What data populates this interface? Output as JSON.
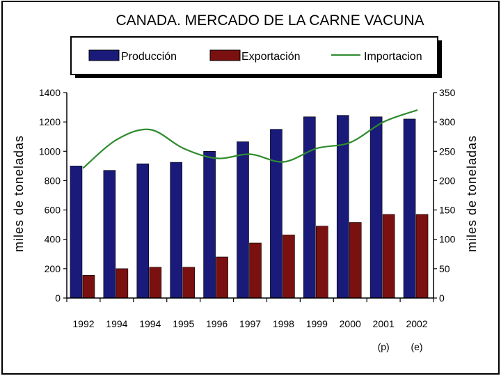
{
  "chart_data": {
    "type": "bar",
    "title": "CANADA. MERCADO DE LA CARNE VACUNA",
    "categories": [
      "1992",
      "1994",
      "1994",
      "1995",
      "1996",
      "1997",
      "1998",
      "1999",
      "2000",
      "2001",
      "2002"
    ],
    "category_notes": [
      "",
      "",
      "",
      "",
      "",
      "",
      "",
      "",
      "",
      "(p)",
      "(e)"
    ],
    "ylabel": "miles de toneladas",
    "y2label": "miles de toneladas",
    "ylim": [
      0,
      1400
    ],
    "y2lim": [
      0,
      350
    ],
    "yticks": [
      "0",
      "200",
      "400",
      "600",
      "800",
      "1000",
      "1200",
      "1400"
    ],
    "y2ticks": [
      "0",
      "50",
      "100",
      "150",
      "200",
      "250",
      "300",
      "350"
    ],
    "legend_position": "top",
    "series": [
      {
        "name": "Producción",
        "type": "bar",
        "axis": "left",
        "color": "#1a1a7a",
        "values": [
          900,
          870,
          915,
          925,
          1000,
          1065,
          1150,
          1235,
          1245,
          1235,
          1220
        ]
      },
      {
        "name": "Exportación",
        "type": "bar",
        "axis": "left",
        "color": "#7a1010",
        "values": [
          155,
          200,
          210,
          210,
          280,
          375,
          430,
          490,
          515,
          570,
          570
        ]
      },
      {
        "name": "Importacion",
        "type": "line",
        "axis": "right",
        "color": "#2e8b2e",
        "values": [
          222,
          270,
          287,
          255,
          238,
          245,
          232,
          255,
          265,
          300,
          320
        ]
      }
    ]
  }
}
